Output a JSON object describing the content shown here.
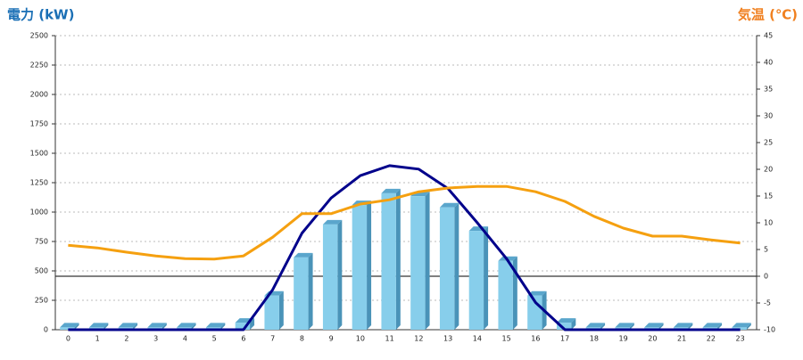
{
  "chart_data": {
    "type": "bar-line",
    "y_title": "電力 (kW)",
    "y2_title": "気温 (℃)",
    "categories": [
      "0",
      "1",
      "2",
      "3",
      "4",
      "5",
      "6",
      "7",
      "8",
      "9",
      "10",
      "11",
      "12",
      "13",
      "14",
      "15",
      "16",
      "17",
      "18",
      "19",
      "20",
      "21",
      "22",
      "23"
    ],
    "ylim": [
      0,
      2500
    ],
    "yticks": [
      0,
      250,
      500,
      750,
      1000,
      1250,
      1500,
      1750,
      2000,
      2250,
      2500
    ],
    "y2lim": [
      -10,
      45
    ],
    "y2ticks": [
      -10,
      -5,
      0,
      5,
      10,
      15,
      20,
      25,
      30,
      35,
      40,
      45
    ],
    "grid": true,
    "series": [
      {
        "kind": "bar",
        "color": "#87ceeb",
        "values": [
          20,
          20,
          20,
          20,
          20,
          20,
          60,
          290,
          615,
          895,
          1060,
          1160,
          1135,
          1040,
          840,
          585,
          290,
          60,
          20,
          20,
          20,
          20,
          20,
          20
        ]
      },
      {
        "kind": "line",
        "color": "#00008b",
        "values": [
          0,
          0,
          0,
          0,
          0,
          0,
          0,
          340,
          820,
          1120,
          1310,
          1395,
          1365,
          1200,
          910,
          605,
          230,
          0,
          0,
          0,
          0,
          0,
          0,
          0
        ]
      },
      {
        "kind": "line",
        "axis": "y2",
        "color": "#f5a010",
        "values": [
          5.8,
          5.3,
          4.5,
          3.8,
          3.3,
          3.2,
          3.8,
          7.3,
          11.7,
          11.7,
          13.5,
          14.3,
          15.8,
          16.5,
          16.8,
          16.8,
          15.8,
          14,
          11.2,
          9,
          7.5,
          7.5,
          6.8,
          6.2
        ]
      }
    ]
  }
}
